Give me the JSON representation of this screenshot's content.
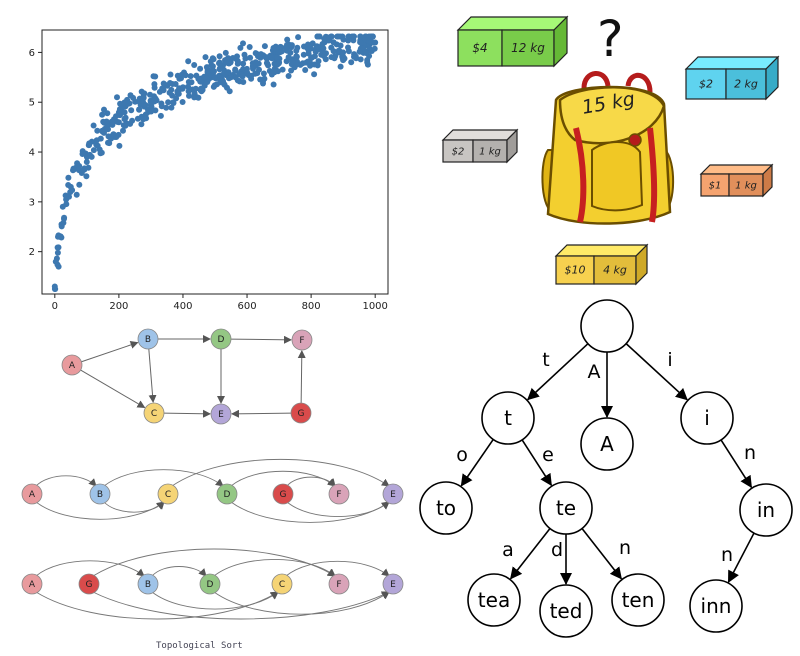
{
  "chart_data": {
    "type": "scatter",
    "title": "",
    "xlabel": "",
    "ylabel": "",
    "xlim": [
      -40,
      1040
    ],
    "ylim": [
      1.15,
      6.45
    ],
    "xticks": [
      "0",
      "200",
      "400",
      "600",
      "800",
      "1000"
    ],
    "yticks": [
      "2",
      "3",
      "4",
      "5",
      "6"
    ],
    "grid": false,
    "color": "#3d78b0",
    "trend": "y = ln(x + 4.5) - 0.66 with noise",
    "sample_points": [
      {
        "x": 0,
        "y": 1.3
      },
      {
        "x": 3,
        "y": 1.8
      },
      {
        "x": 10,
        "y": 2.3
      },
      {
        "x": 25,
        "y": 2.9
      },
      {
        "x": 50,
        "y": 3.3
      },
      {
        "x": 100,
        "y": 3.9
      },
      {
        "x": 200,
        "y": 4.6
      },
      {
        "x": 300,
        "y": 5.0
      },
      {
        "x": 400,
        "y": 5.3
      },
      {
        "x": 500,
        "y": 5.5
      },
      {
        "x": 600,
        "y": 5.6
      },
      {
        "x": 700,
        "y": 5.8
      },
      {
        "x": 800,
        "y": 5.9
      },
      {
        "x": 900,
        "y": 6.0
      },
      {
        "x": 1000,
        "y": 6.2
      }
    ]
  },
  "graph": {
    "nodes": {
      "A": {
        "label": "A",
        "color": "#e89a9d"
      },
      "B": {
        "label": "B",
        "color": "#9fc3e8"
      },
      "C": {
        "label": "C",
        "color": "#f5d476"
      },
      "D": {
        "label": "D",
        "color": "#94c784"
      },
      "E": {
        "label": "E",
        "color": "#b3a6d8"
      },
      "F": {
        "label": "F",
        "color": "#d9a3b8"
      },
      "G": {
        "label": "G",
        "color": "#d94b4b"
      }
    },
    "edges": [
      [
        "A",
        "B"
      ],
      [
        "A",
        "C"
      ],
      [
        "B",
        "D"
      ],
      [
        "B",
        "C"
      ],
      [
        "C",
        "E"
      ],
      [
        "D",
        "E"
      ],
      [
        "D",
        "F"
      ],
      [
        "G",
        "E"
      ],
      [
        "G",
        "F"
      ]
    ],
    "order1": [
      "A",
      "B",
      "C",
      "D",
      "G",
      "F",
      "E"
    ],
    "order2": [
      "A",
      "G",
      "B",
      "D",
      "C",
      "F",
      "E"
    ],
    "caption": "Topological Sort"
  },
  "knapsack": {
    "capacity_label": "15 kg",
    "question_mark": "?",
    "items": [
      {
        "price": "$4",
        "weight": "12 kg",
        "color": "#8de05e"
      },
      {
        "price": "$2",
        "weight": "2 kg",
        "color": "#5fd3ef"
      },
      {
        "price": "$2",
        "weight": "1 kg",
        "color": "#c8c5c2"
      },
      {
        "price": "$1",
        "weight": "1 kg",
        "color": "#f5a36f"
      },
      {
        "price": "$10",
        "weight": "4 kg",
        "color": "#f7d14f"
      }
    ]
  },
  "trie": {
    "nodes": [
      {
        "id": "root",
        "label": ""
      },
      {
        "id": "t",
        "label": "t"
      },
      {
        "id": "A",
        "label": "A"
      },
      {
        "id": "i",
        "label": "i"
      },
      {
        "id": "to",
        "label": "to"
      },
      {
        "id": "te",
        "label": "te"
      },
      {
        "id": "in",
        "label": "in"
      },
      {
        "id": "tea",
        "label": "tea"
      },
      {
        "id": "ted",
        "label": "ted"
      },
      {
        "id": "ten",
        "label": "ten"
      },
      {
        "id": "inn",
        "label": "inn"
      }
    ],
    "edges": [
      {
        "from": "root",
        "to": "t",
        "label": "t"
      },
      {
        "from": "root",
        "to": "A",
        "label": "A"
      },
      {
        "from": "root",
        "to": "i",
        "label": "i"
      },
      {
        "from": "t",
        "to": "to",
        "label": "o"
      },
      {
        "from": "t",
        "to": "te",
        "label": "e"
      },
      {
        "from": "i",
        "to": "in",
        "label": "n"
      },
      {
        "from": "te",
        "to": "tea",
        "label": "a"
      },
      {
        "from": "te",
        "to": "ted",
        "label": "d"
      },
      {
        "from": "te",
        "to": "ten",
        "label": "n"
      },
      {
        "from": "in",
        "to": "inn",
        "label": "n"
      }
    ]
  }
}
